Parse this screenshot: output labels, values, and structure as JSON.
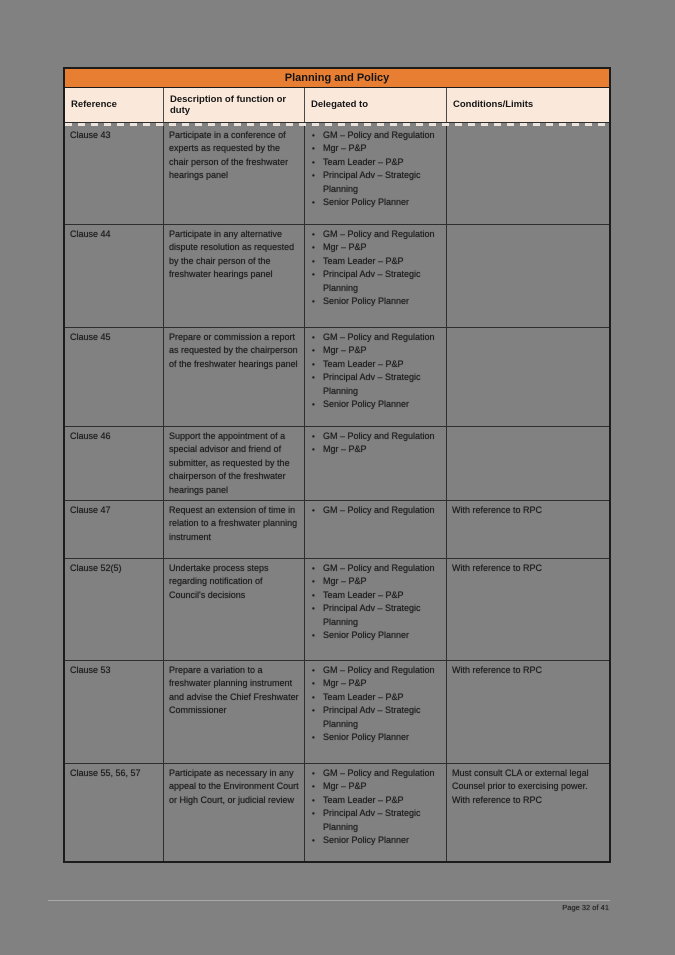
{
  "page": {
    "footer": "Page 32 of 41"
  },
  "colors": {
    "accent_orange": "#e87e32",
    "header_bg": "#fae8db",
    "page_bg": "#818181"
  },
  "icons": {
    "bullet": "•"
  },
  "table": {
    "title": "Planning and Policy",
    "headers": [
      "Reference",
      "Description of function or duty",
      "Delegated to",
      "Conditions/Limits"
    ],
    "rows": [
      {
        "reference": "Clause 43",
        "description": "Participate in a conference of experts as requested by the chair person of the freshwater hearings panel",
        "delegated_to": [
          "GM – Policy and Regulation",
          "Mgr – P&P",
          "Team Leader – P&P",
          "Principal Adv – Strategic Planning",
          "Senior Policy Planner"
        ],
        "conditions": []
      },
      {
        "reference": "Clause 44",
        "description": "Participate in any alternative dispute resolution as requested by the chair person of the freshwater hearings panel",
        "delegated_to": [
          "GM – Policy and Regulation",
          "Mgr – P&P",
          "Team Leader – P&P",
          "Principal Adv – Strategic Planning",
          "Senior Policy Planner"
        ],
        "conditions": []
      },
      {
        "reference": "Clause 45",
        "description": "Prepare or commission a report as requested by the chairperson of the freshwater hearings panel",
        "delegated_to": [
          "GM – Policy and Regulation",
          "Mgr – P&P",
          "Team Leader – P&P",
          "Principal Adv – Strategic Planning",
          "Senior Policy Planner"
        ],
        "conditions": []
      },
      {
        "reference": "Clause 46",
        "description": "Support the appointment of a special advisor and friend of submitter, as requested by the chairperson of the freshwater hearings panel",
        "delegated_to": [
          "GM – Policy and Regulation",
          "Mgr – P&P"
        ],
        "conditions": []
      },
      {
        "reference": "Clause 47",
        "description": "Request an extension of time in relation to a freshwater planning instrument",
        "delegated_to": [
          "GM – Policy and Regulation"
        ],
        "conditions": [
          "With reference to RPC"
        ]
      },
      {
        "reference": "Clause 52(5)",
        "description": "Undertake process steps regarding notification of Council's decisions",
        "delegated_to": [
          "GM – Policy and Regulation",
          "Mgr – P&P",
          "Team Leader – P&P",
          "Principal Adv – Strategic Planning",
          "Senior Policy Planner"
        ],
        "conditions": [
          "With reference to RPC"
        ]
      },
      {
        "reference": "Clause 53",
        "description": "Prepare a variation to a freshwater planning instrument and advise the Chief Freshwater Commissioner",
        "delegated_to": [
          "GM – Policy and Regulation",
          "Mgr – P&P",
          "Team Leader – P&P",
          "Principal Adv – Strategic Planning",
          "Senior Policy Planner"
        ],
        "conditions": [
          "With reference to RPC"
        ]
      },
      {
        "reference": "Clause 55, 56, 57",
        "description": "Participate as necessary in any appeal to the Environment Court or High Court, or judicial review",
        "delegated_to": [
          "GM – Policy and Regulation",
          "Mgr – P&P",
          "Team Leader – P&P",
          "Principal Adv – Strategic Planning",
          "Senior Policy Planner"
        ],
        "conditions": [
          "Must consult CLA or external legal Counsel prior to exercising power.",
          "With reference to RPC"
        ]
      }
    ]
  }
}
